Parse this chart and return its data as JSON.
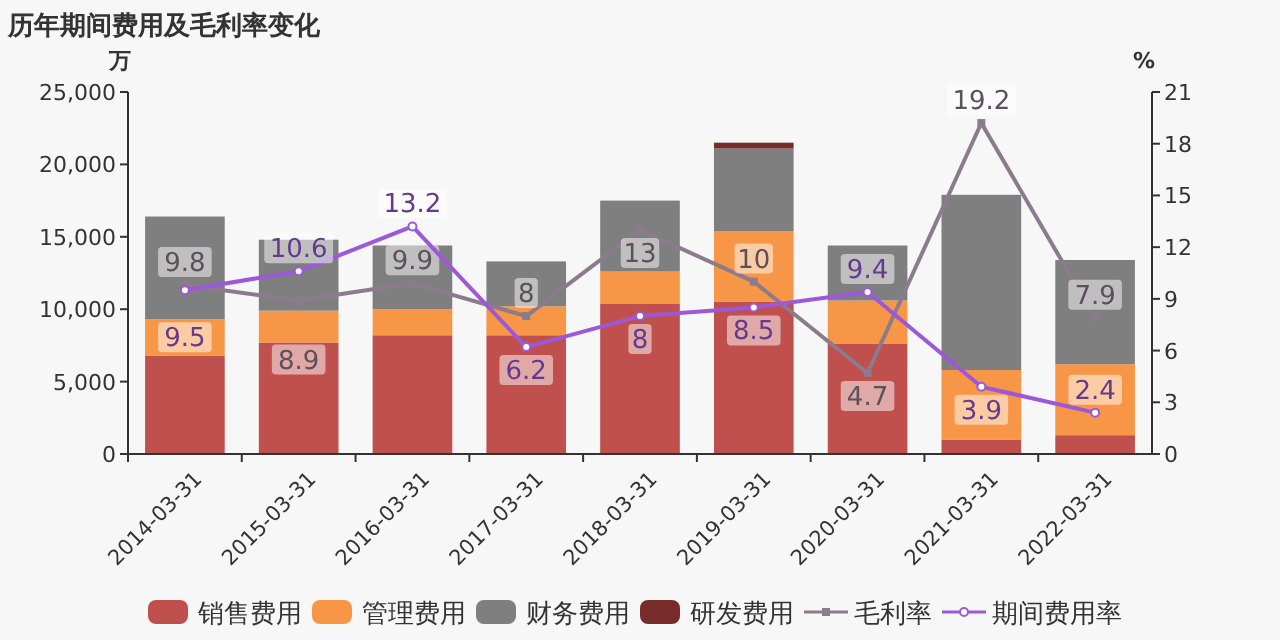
{
  "chart_data": {
    "type": "bar",
    "title": "历年期间费用及毛利率变化",
    "ylabel": "万",
    "y2label": "%",
    "stacked": true,
    "categories": [
      "2014-03-31",
      "2015-03-31",
      "2016-03-31",
      "2017-03-31",
      "2018-03-31",
      "2019-03-31",
      "2020-03-31",
      "2021-03-31",
      "2022-03-31"
    ],
    "series": [
      {
        "name": "销售费用",
        "color": "#c0504d",
        "values": [
          6800,
          7700,
          8200,
          8200,
          10400,
          10500,
          7600,
          1000,
          1300
        ]
      },
      {
        "name": "管理费用",
        "color": "#f79646",
        "values": [
          2500,
          2200,
          1800,
          2000,
          2200,
          4900,
          3000,
          4800,
          4900
        ]
      },
      {
        "name": "财务费用",
        "color": "#7f7f7f",
        "values": [
          7100,
          4900,
          4400,
          3100,
          4900,
          5700,
          3800,
          12100,
          7200
        ]
      },
      {
        "name": "研发费用",
        "color": "#772c2a",
        "values": [
          0,
          0,
          0,
          0,
          0,
          400,
          0,
          0,
          0
        ]
      },
      {
        "name": "毛利率",
        "type": "line",
        "axis": "y2",
        "color": "#8c7b8c",
        "marker": "square",
        "data_labels": true,
        "values": [
          9.8,
          8.9,
          9.9,
          8,
          13,
          10,
          4.7,
          19.2,
          7.9
        ]
      },
      {
        "name": "期间费用率",
        "type": "line",
        "axis": "y2",
        "color": "#9b59d9",
        "marker": "circle",
        "data_labels": true,
        "values": [
          9.5,
          10.6,
          13.2,
          6.2,
          8,
          8.5,
          9.4,
          3.9,
          2.4
        ]
      }
    ],
    "ylim": [
      0,
      25000
    ],
    "yticks": [
      {
        "value": 0,
        "label": "0"
      },
      {
        "value": 5000,
        "label": "5,000"
      },
      {
        "value": 10000,
        "label": "10,000"
      },
      {
        "value": 15000,
        "label": "15,000"
      },
      {
        "value": 20000,
        "label": "20,000"
      },
      {
        "value": 25000,
        "label": "25,000"
      }
    ],
    "y2lim": [
      0,
      21
    ],
    "y2ticks": [
      0,
      3,
      6,
      9,
      12,
      15,
      18,
      21
    ],
    "grid": false,
    "legend": "bottom"
  }
}
